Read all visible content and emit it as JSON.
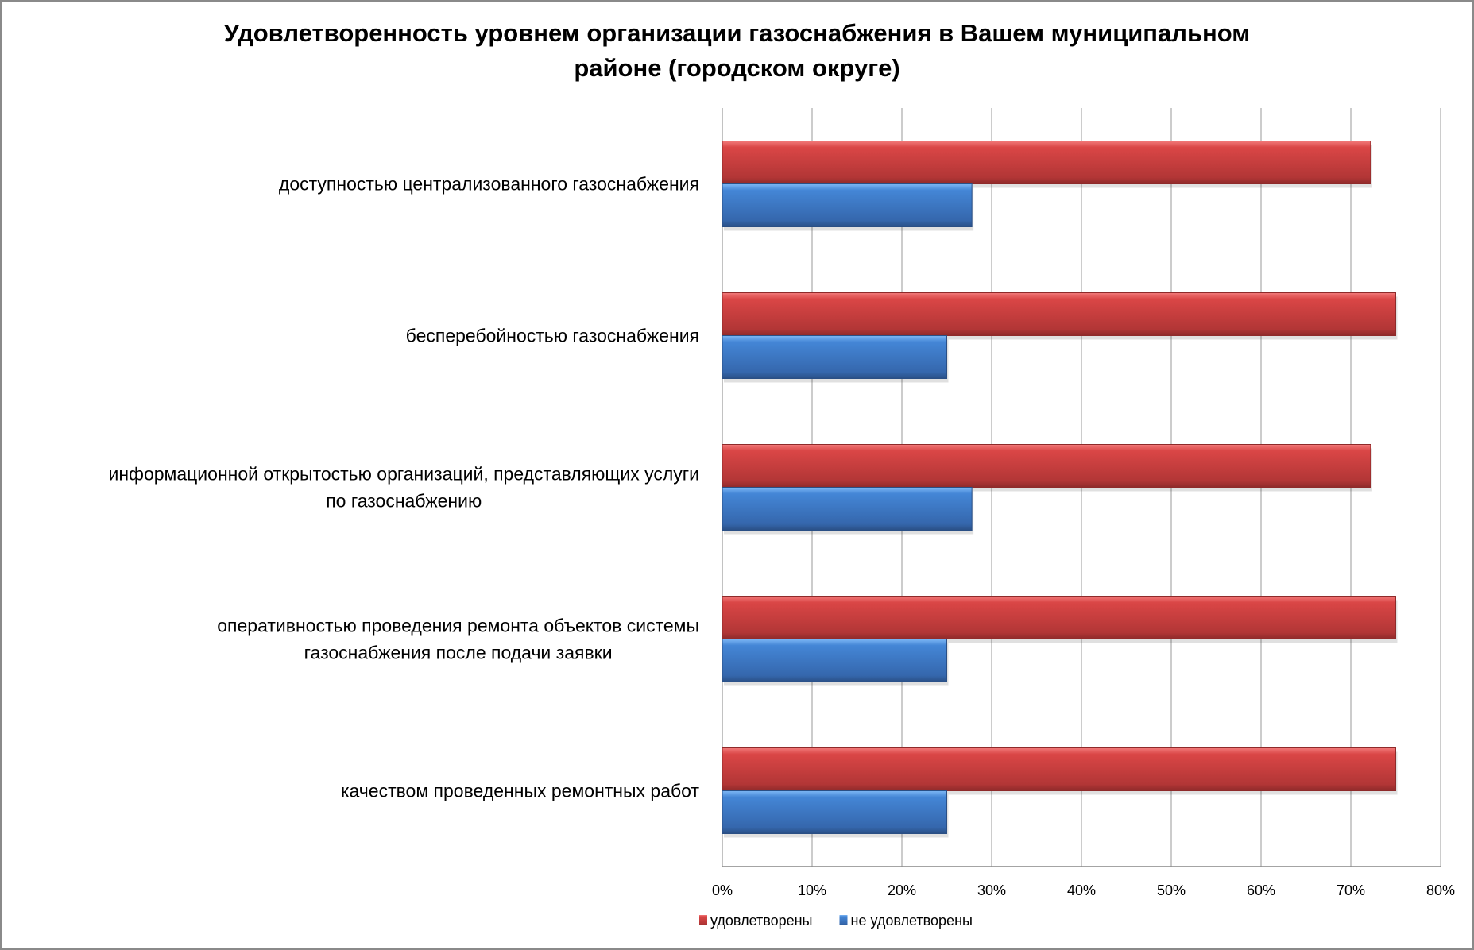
{
  "chart_data": {
    "type": "bar",
    "orientation": "horizontal",
    "title_lines": [
      "Удовлетворенность уровнем организации газоснабжения в Вашем муниципальном",
      "районе (городском округе)"
    ],
    "categories": [
      [
        "доступностью централизованного газоснабжения"
      ],
      [
        "бесперебойностью  газоснабжения"
      ],
      [
        "информационной открытостью организаций, представляющих услуги",
        "по газоснабжению"
      ],
      [
        "оперативностью проведения ремонта объектов системы",
        "газоснабжения после подачи заявки"
      ],
      [
        "качеством проведенных ремонтных работ"
      ]
    ],
    "series": [
      {
        "name": "удовлетворены",
        "color": "#c0393b",
        "values": [
          72.2,
          75,
          72.2,
          75,
          75
        ]
      },
      {
        "name": "не удовлетворены",
        "color": "#3a78c8",
        "values": [
          27.8,
          25,
          27.8,
          25,
          25
        ]
      }
    ],
    "xlim": [
      0,
      80
    ],
    "xticks": [
      "0%",
      "10%",
      "20%",
      "30%",
      "40%",
      "50%",
      "60%",
      "70%",
      "80%"
    ],
    "grid": true,
    "legend": "bottom"
  }
}
